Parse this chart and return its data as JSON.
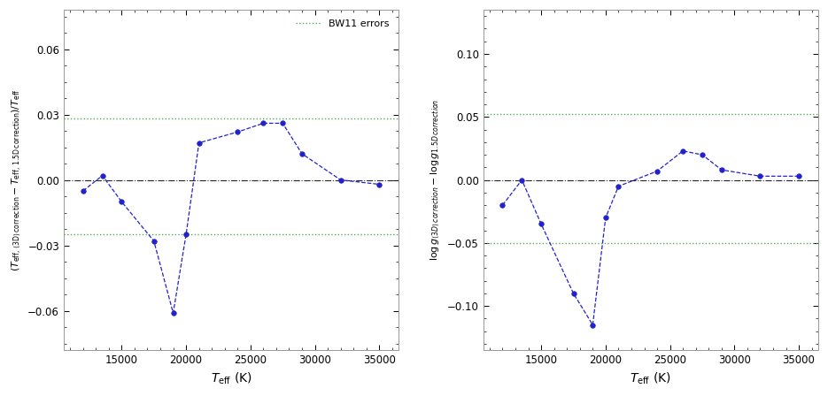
{
  "left": {
    "x": [
      12000,
      13500,
      15000,
      17500,
      19000,
      20000,
      21000,
      24000,
      26000,
      27500,
      29000,
      32000,
      35000
    ],
    "y": [
      -0.005,
      0.002,
      -0.01,
      -0.028,
      -0.061,
      -0.025,
      0.017,
      0.022,
      0.026,
      0.026,
      0.012,
      0.0,
      -0.002
    ],
    "ylabel": "$(T_{\\rm eff,\\, \\langle 3D\\rangle\\, correction} - T_{\\rm eff,\\, 1.5D\\, correction})/T_{\\rm eff}$",
    "ylim": [
      -0.078,
      0.078
    ],
    "yticks": [
      -0.06,
      -0.03,
      0.0,
      0.03,
      0.06
    ],
    "green_lines": [
      0.028,
      -0.025
    ],
    "legend_label": "BW11 errors"
  },
  "right": {
    "x": [
      12000,
      13500,
      15000,
      17500,
      19000,
      20000,
      21000,
      24000,
      26000,
      27500,
      29000,
      32000,
      35000
    ],
    "y": [
      -0.02,
      0.0,
      -0.035,
      -0.09,
      -0.115,
      -0.03,
      -0.005,
      0.007,
      0.023,
      0.02,
      0.008,
      0.003,
      0.003
    ],
    "ylabel": "$\\log g_{\\langle 3D\\rangle\\, correction} - \\log g_{1.5D\\, correction}$",
    "ylim": [
      -0.135,
      0.135
    ],
    "yticks": [
      -0.1,
      -0.05,
      0.0,
      0.05,
      0.1
    ],
    "green_lines": [
      0.052,
      -0.05
    ]
  },
  "xlabel": "$T_{\\rm eff}$ (K)",
  "xlim": [
    10500,
    36500
  ],
  "xticks": [
    15000,
    20000,
    25000,
    30000,
    35000
  ],
  "line_color": "#2222cc",
  "marker_color": "#2222cc",
  "green_color": "#55aa55",
  "zero_line_color": "#222222",
  "bg_color": "#ffffff"
}
